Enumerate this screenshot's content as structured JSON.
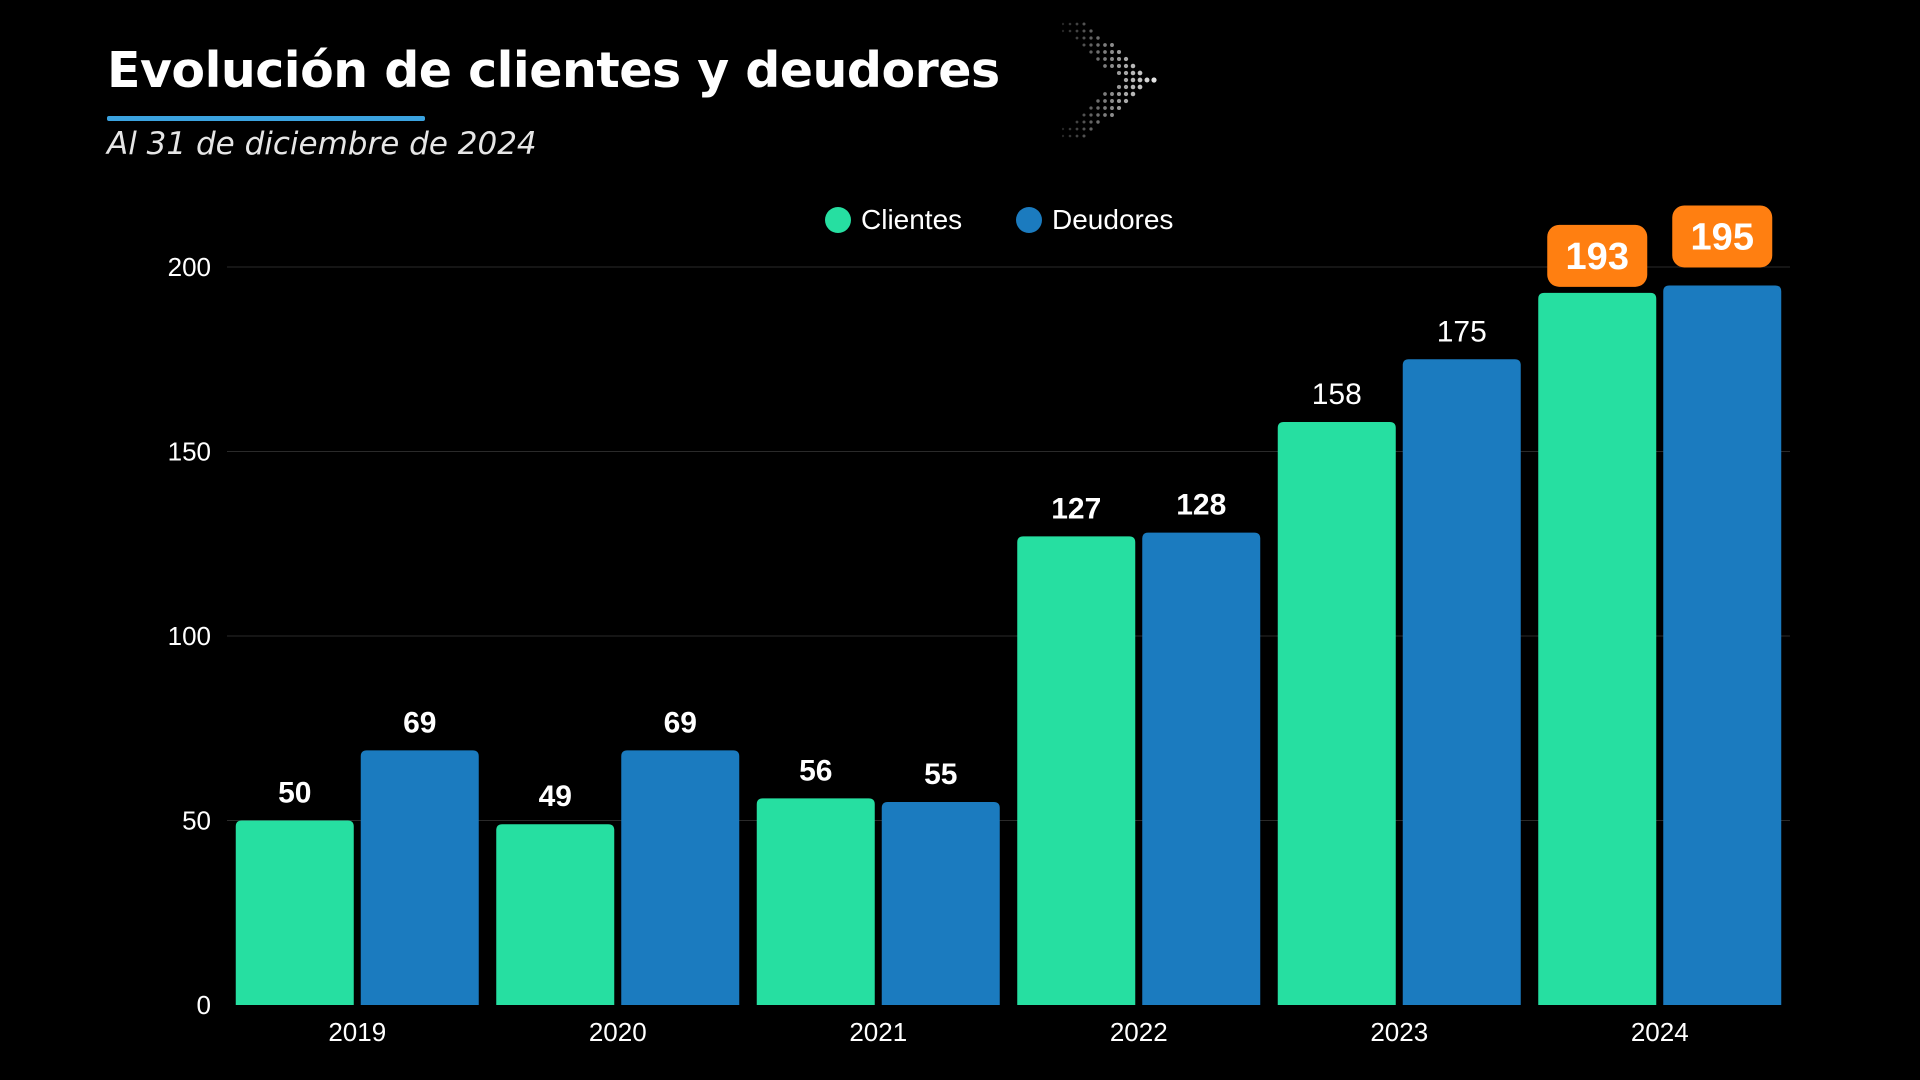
{
  "header": {
    "title": "Evolución de clientes y deudores",
    "subtitle": "Al 31 de diciembre de 2024"
  },
  "colors": {
    "background": "#000000",
    "clientes": "#26DFA1",
    "deudores": "#1B7BBF",
    "callout": "#FF7F11",
    "underline": "#3BA3E0",
    "grid": "#2a2a2a"
  },
  "chart_data": {
    "type": "bar",
    "title": "Evolución de clientes y deudores",
    "subtitle": "Al 31 de diciembre de 2024",
    "categories": [
      "2019",
      "2020",
      "2021",
      "2022",
      "2023",
      "2024"
    ],
    "series": [
      {
        "name": "Clientes",
        "color": "#26DFA1",
        "values": [
          50,
          49,
          56,
          127,
          158,
          193
        ],
        "labels": [
          "50",
          "49",
          "56",
          "127",
          "158",
          "193"
        ]
      },
      {
        "name": "Deudores",
        "color": "#1B7BBF",
        "values": [
          69,
          69,
          55,
          128,
          175,
          195
        ],
        "labels": [
          "69",
          "69",
          "55",
          "128",
          "175",
          "195"
        ]
      }
    ],
    "yticks": [
      0,
      50,
      100,
      150,
      200
    ],
    "ylim": [
      0,
      200
    ],
    "xlabel": "",
    "ylabel": "",
    "grid": true,
    "legend": "top-center",
    "highlighted_category": "2024"
  }
}
